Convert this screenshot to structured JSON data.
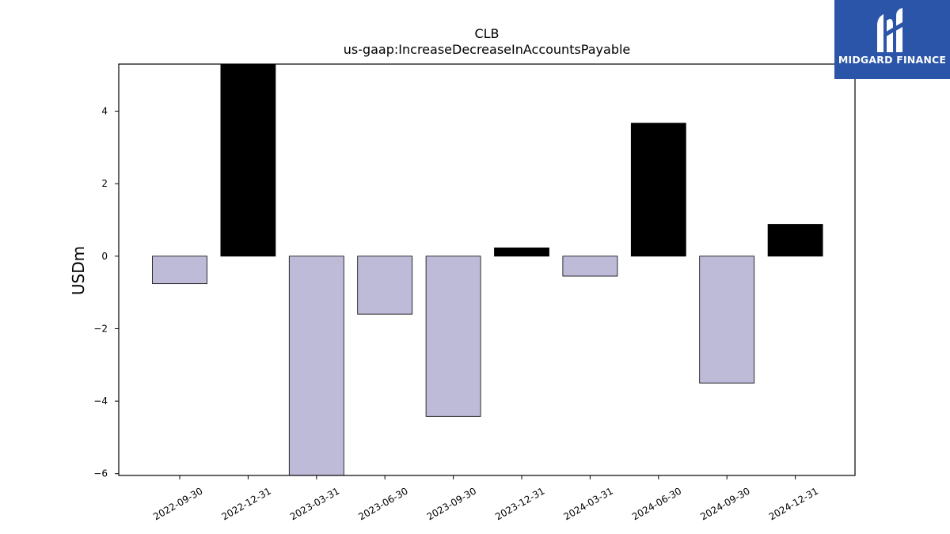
{
  "brand": {
    "name": "MIDGARD FINANCE",
    "mark": "logo-mark-icon",
    "bg_color": "#2b55a8"
  },
  "colors": {
    "positive": "#000000",
    "negative": "#bebbd9",
    "stroke": "#000000"
  },
  "chart_data": {
    "type": "bar",
    "title": "CLB",
    "subtitle": "us-gaap:IncreaseDecreaseInAccountsPayable",
    "xlabel": "",
    "ylabel": "USDm",
    "categories": [
      "2022-09-30",
      "2022-12-31",
      "2023-03-31",
      "2023-06-30",
      "2023-09-30",
      "2023-12-31",
      "2024-03-31",
      "2024-06-30",
      "2024-09-30",
      "2024-12-31"
    ],
    "values": [
      -0.76,
      5.5,
      -6.2,
      -1.6,
      -4.42,
      0.23,
      -0.55,
      3.67,
      -3.5,
      0.88
    ],
    "ylim": [
      -6.05,
      5.3
    ],
    "yticks": [
      -6,
      -4,
      -2,
      0,
      2,
      4
    ],
    "ytick_labels": [
      "−6",
      "−4",
      "−2",
      "0",
      "2",
      "4"
    ],
    "grid": false,
    "legend": "none"
  }
}
